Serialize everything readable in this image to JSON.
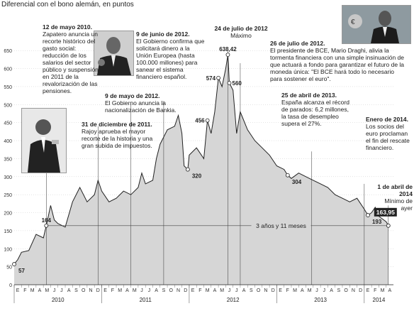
{
  "title": "Diferencial con el bono alemán, en puntos",
  "colors": {
    "area_fill": "#d6d6d6",
    "line": "#222222",
    "grid": "#bbbbbb",
    "highlight_label_bg": "#222222"
  },
  "chart_data": {
    "type": "area",
    "ylabel": "",
    "ylim": [
      0,
      680
    ],
    "yticks": [
      0,
      50,
      100,
      150,
      200,
      250,
      300,
      350,
      400,
      450,
      500,
      550,
      600,
      650
    ],
    "xlim": [
      0,
      52
    ],
    "month_ticks": [
      "E",
      "F",
      "M",
      "A",
      "M",
      "J",
      "J",
      "A",
      "S",
      "O",
      "N",
      "D",
      "E",
      "F",
      "M",
      "A",
      "M",
      "J",
      "J",
      "A",
      "S",
      "O",
      "N",
      "D",
      "E",
      "F",
      "M",
      "A",
      "M",
      "J",
      "J",
      "A",
      "S",
      "O",
      "N",
      "D",
      "E",
      "F",
      "M",
      "A",
      "M",
      "J",
      "J",
      "A",
      "S",
      "O",
      "N",
      "D",
      "E",
      "F",
      "M",
      "A"
    ],
    "years": [
      {
        "label": "2010",
        "center": 6
      },
      {
        "label": "2011",
        "center": 18
      },
      {
        "label": "2012",
        "center": 30
      },
      {
        "label": "2013",
        "center": 42
      },
      {
        "label": "2014",
        "center": 50
      }
    ],
    "series": [
      {
        "name": "",
        "x": [
          0,
          0.5,
          1,
          2,
          3,
          4,
          4.4,
          5,
          5.5,
          6,
          7,
          8,
          9,
          10,
          11,
          11.5,
          12,
          13,
          14,
          15,
          16,
          17,
          17.5,
          18,
          19,
          19.5,
          20,
          21,
          22,
          22.5,
          23,
          23.3,
          23.8,
          24,
          25,
          26,
          26.5,
          27,
          27.5,
          28,
          28.5,
          29,
          29.3,
          29.5,
          30,
          30.5,
          31,
          32,
          33,
          34,
          35,
          36,
          37,
          37.5,
          38,
          39,
          40,
          41,
          42,
          43,
          44,
          45,
          46,
          47,
          48,
          48.5,
          49,
          49.5,
          50,
          51,
          51.3
        ],
        "y": [
          57,
          70,
          90,
          95,
          140,
          130,
          164,
          220,
          180,
          170,
          160,
          230,
          270,
          230,
          250,
          290,
          260,
          230,
          240,
          260,
          250,
          270,
          310,
          280,
          290,
          350,
          390,
          430,
          440,
          470,
          420,
          330,
          320,
          360,
          380,
          350,
          456,
          420,
          480,
          574,
          550,
          600,
          638.42,
          560,
          540,
          420,
          480,
          430,
          400,
          380,
          360,
          330,
          320,
          304,
          295,
          310,
          300,
          290,
          280,
          270,
          250,
          240,
          230,
          240,
          210,
          193,
          200,
          215,
          190,
          175,
          163.95
        ]
      }
    ],
    "point_labels": [
      {
        "text": "57",
        "x": 0,
        "y": 57,
        "pos": "below"
      },
      {
        "text": "164",
        "x": 4.4,
        "y": 164,
        "pos": "above"
      },
      {
        "text": "320",
        "x": 23.8,
        "y": 320,
        "pos": "below"
      },
      {
        "text": "456",
        "x": 26.5,
        "y": 456,
        "pos": "left"
      },
      {
        "text": "574",
        "x": 28,
        "y": 574,
        "pos": "left"
      },
      {
        "text": "638,42",
        "x": 29.3,
        "y": 638.42,
        "pos": "top"
      },
      {
        "text": "560",
        "x": 29.5,
        "y": 560,
        "pos": "right"
      },
      {
        "text": "304",
        "x": 37.5,
        "y": 304,
        "pos": "below"
      },
      {
        "text": "193",
        "x": 48.5,
        "y": 193,
        "pos": "below"
      },
      {
        "text": "163,95",
        "x": 51.3,
        "y": 163.95,
        "pos": "highlight"
      }
    ],
    "span": {
      "label": "3 años y 11 meses",
      "x_start": 4.4,
      "x_end": 51.3,
      "y": 164
    },
    "annotation_lines": [
      {
        "x": 4.4,
        "y_top": 420
      },
      {
        "x": 11.5,
        "y_top": 440
      },
      {
        "x": 16,
        "y_top": 500
      },
      {
        "x": 20.5,
        "y_top": 510
      },
      {
        "x": 29.3,
        "y_top": 650
      },
      {
        "x": 31,
        "y_top": 615
      },
      {
        "x": 40.8,
        "y_top": 370
      },
      {
        "x": 48,
        "y_top": 280
      },
      {
        "x": 51.3,
        "y_top": 220
      }
    ]
  },
  "annotations": [
    {
      "title": "12 de mayo 2010.",
      "body": "Zapatero anuncia un recorte histórico del gasto social: reducción de los salarios del sector público y suspensión en 2011 de la revalorización de las pensiones."
    },
    {
      "title": "9 de junio de 2012.",
      "body": "El Gobierno confirma que solicitará dinero a la Unión Europea (hasta 100.000 millones) para sanear el sistema financiero español."
    },
    {
      "title": "24 de julio de 2012",
      "body": "Máximo"
    },
    {
      "title": "26 de julio de 2012.",
      "body": "El presidente de BCE, Mario Draghi, alivia la tormenta financiera con una simple insinuación de que actuará a fondo para garantizar el futuro de la moneda única: \"El BCE hará todo lo necesario para sostener el euro\"."
    },
    {
      "title": "9 de mayo de 2012.",
      "body": "El Gobierno anuncia la nacionalización de Bankia."
    },
    {
      "title": "31 de diciembre de 2011.",
      "body": "Rajoy aprueba el mayor recorte de la historia y una gran subida de impuestos."
    },
    {
      "title": "25 de abril de 2013.",
      "body": "España alcanza el récord de parados: 6,2 millones, la tasa de desempleo supera el 27%."
    },
    {
      "title": "Enero de 2014.",
      "body": "Los socios del euro proclaman el fin del rescate financiero."
    },
    {
      "title": "1 de abril de 2014",
      "body": "Mínimo de ayer"
    }
  ],
  "photos": [
    "zapatero-photo",
    "de-guindos-photo",
    "draghi-photo"
  ]
}
